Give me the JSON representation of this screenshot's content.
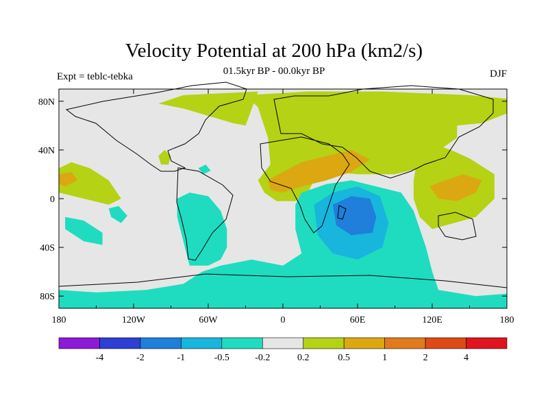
{
  "chart_data": {
    "type": "heatmap",
    "title": "Velocity Potential at 200 hPa (km2/s)",
    "subtitle": "01.5kyr BP - 00.0kyr BP",
    "left_label": "Expt = teblc-tebka",
    "right_label": "DJF",
    "xlim": [
      -180,
      180
    ],
    "ylim": [
      -90,
      90
    ],
    "x_ticks": [
      {
        "value": -180,
        "label": "180"
      },
      {
        "value": -120,
        "label": "120W"
      },
      {
        "value": -60,
        "label": "60W"
      },
      {
        "value": 0,
        "label": "0"
      },
      {
        "value": 60,
        "label": "60E"
      },
      {
        "value": 120,
        "label": "120E"
      },
      {
        "value": 180,
        "label": "180"
      }
    ],
    "y_ticks": [
      {
        "value": 80,
        "label": "80N"
      },
      {
        "value": 40,
        "label": "40N"
      },
      {
        "value": 0,
        "label": "0"
      },
      {
        "value": -40,
        "label": "40S"
      },
      {
        "value": -80,
        "label": "80S"
      }
    ],
    "colorbar": {
      "colors": [
        "#8c1ad6",
        "#2f3fd4",
        "#1f7fda",
        "#18b5dd",
        "#1fdcc0",
        "#e6e6e6",
        "#b5d214",
        "#dba812",
        "#e07a1c",
        "#de4a16",
        "#e0141e"
      ],
      "labels": [
        "-4",
        "-2",
        "-1",
        "-0.5",
        "-0.2",
        "0.2",
        "0.5",
        "1",
        "2",
        "4"
      ]
    },
    "regions": [
      {
        "name": "north-africa-eurasia-positive",
        "class": "0.2 to 0.5",
        "color": "#b5d214",
        "points": [
          [
            -20,
            15
          ],
          [
            -10,
            28
          ],
          [
            -12,
            50
          ],
          [
            -20,
            75
          ],
          [
            -30,
            85
          ],
          [
            20,
            88
          ],
          [
            80,
            88
          ],
          [
            150,
            85
          ],
          [
            180,
            82
          ],
          [
            180,
            70
          ],
          [
            160,
            62
          ],
          [
            140,
            60
          ],
          [
            140,
            50
          ],
          [
            130,
            43
          ],
          [
            120,
            35
          ],
          [
            110,
            25
          ],
          [
            90,
            20
          ],
          [
            60,
            20
          ],
          [
            40,
            22
          ],
          [
            25,
            15
          ],
          [
            20,
            5
          ],
          [
            10,
            -2
          ],
          [
            -5,
            -2
          ],
          [
            -15,
            5
          ]
        ]
      },
      {
        "name": "north-atlantic-positive",
        "class": "0.2 to 0.5",
        "color": "#b5d214",
        "points": [
          [
            -100,
            78
          ],
          [
            -80,
            85
          ],
          [
            -20,
            88
          ],
          [
            -30,
            60
          ],
          [
            -40,
            62
          ],
          [
            -60,
            68
          ],
          [
            -80,
            74
          ]
        ]
      },
      {
        "name": "west-pacific-positive",
        "class": "0.2 to 0.5",
        "color": "#b5d214",
        "points": [
          [
            108,
            32
          ],
          [
            120,
            45
          ],
          [
            135,
            40
          ],
          [
            150,
            33
          ],
          [
            170,
            20
          ],
          [
            170,
            0
          ],
          [
            155,
            -15
          ],
          [
            120,
            -25
          ],
          [
            110,
            -15
          ],
          [
            105,
            0
          ],
          [
            105,
            15
          ]
        ]
      },
      {
        "name": "gulf-positive",
        "class": "0.2 to 0.5",
        "color": "#b5d214",
        "points": [
          [
            -100,
            35
          ],
          [
            -95,
            40
          ],
          [
            -90,
            35
          ],
          [
            -92,
            28
          ],
          [
            -98,
            28
          ]
        ]
      },
      {
        "name": "north-pacific-positive",
        "class": "0.2 to 0.5",
        "color": "#b5d214",
        "points": [
          [
            -180,
            25
          ],
          [
            -170,
            30
          ],
          [
            -155,
            25
          ],
          [
            -140,
            15
          ],
          [
            -130,
            0
          ],
          [
            -140,
            -5
          ],
          [
            -160,
            0
          ],
          [
            -180,
            5
          ]
        ]
      },
      {
        "name": "north-africa-moderate",
        "class": "0.5 to 1",
        "color": "#dba812",
        "points": [
          [
            -12,
            15
          ],
          [
            0,
            22
          ],
          [
            15,
            30
          ],
          [
            35,
            35
          ],
          [
            55,
            40
          ],
          [
            70,
            32
          ],
          [
            55,
            22
          ],
          [
            35,
            15
          ],
          [
            15,
            10
          ],
          [
            0,
            5
          ],
          [
            -10,
            7
          ]
        ]
      },
      {
        "name": "indonesia-moderate",
        "class": "0.5 to 1",
        "color": "#dba812",
        "points": [
          [
            118,
            10
          ],
          [
            125,
            13
          ],
          [
            145,
            20
          ],
          [
            160,
            15
          ],
          [
            155,
            5
          ],
          [
            140,
            -2
          ],
          [
            125,
            0
          ]
        ]
      },
      {
        "name": "pacific-moderate",
        "class": "0.5 to 1",
        "color": "#dba812",
        "points": [
          [
            -180,
            20
          ],
          [
            -170,
            22
          ],
          [
            -165,
            15
          ],
          [
            -175,
            10
          ],
          [
            -180,
            12
          ]
        ]
      },
      {
        "name": "indian-ocean-negative",
        "class": "-0.5 to -0.2",
        "color": "#1fdcc0",
        "points": [
          [
            15,
            5
          ],
          [
            35,
            12
          ],
          [
            55,
            15
          ],
          [
            75,
            10
          ],
          [
            95,
            5
          ],
          [
            105,
            -10
          ],
          [
            115,
            -40
          ],
          [
            120,
            -60
          ],
          [
            125,
            -75
          ],
          [
            155,
            -80
          ],
          [
            180,
            -78
          ],
          [
            180,
            -90
          ],
          [
            -180,
            -90
          ],
          [
            -180,
            -75
          ],
          [
            -150,
            -77
          ],
          [
            -110,
            -75
          ],
          [
            -80,
            -70
          ],
          [
            -65,
            -60
          ],
          [
            -50,
            -55
          ],
          [
            -25,
            -50
          ],
          [
            0,
            -55
          ],
          [
            15,
            -45
          ],
          [
            10,
            -25
          ],
          [
            10,
            -5
          ]
        ]
      },
      {
        "name": "south-america-negative",
        "class": "-0.5 to -0.2",
        "color": "#1fdcc0",
        "points": [
          [
            -85,
            0
          ],
          [
            -75,
            5
          ],
          [
            -60,
            2
          ],
          [
            -50,
            -10
          ],
          [
            -45,
            -25
          ],
          [
            -45,
            -40
          ],
          [
            -50,
            -50
          ],
          [
            -60,
            -55
          ],
          [
            -75,
            -55
          ],
          [
            -80,
            -35
          ],
          [
            -85,
            -15
          ]
        ]
      },
      {
        "name": "south-pacific-negative",
        "class": "-0.5 to -0.2",
        "color": "#1fdcc0",
        "points": [
          [
            -175,
            -15
          ],
          [
            -160,
            -18
          ],
          [
            -145,
            -28
          ],
          [
            -145,
            -38
          ],
          [
            -160,
            -35
          ],
          [
            -175,
            -25
          ]
        ]
      },
      {
        "name": "caribbean-negative",
        "class": "-0.5 to -0.2",
        "color": "#1fdcc0",
        "points": [
          [
            -68,
            25
          ],
          [
            -62,
            28
          ],
          [
            -58,
            23
          ],
          [
            -64,
            20
          ]
        ]
      },
      {
        "name": "mid-pacific-negative",
        "class": "-0.5 to -0.2",
        "color": "#1fdcc0",
        "points": [
          [
            -140,
            -8
          ],
          [
            -132,
            -6
          ],
          [
            -125,
            -14
          ],
          [
            -130,
            -20
          ],
          [
            -138,
            -15
          ]
        ]
      },
      {
        "name": "indian-ocean-strong",
        "class": "-1 to -0.5",
        "color": "#18b5dd",
        "points": [
          [
            25,
            -5
          ],
          [
            40,
            5
          ],
          [
            60,
            10
          ],
          [
            78,
            2
          ],
          [
            85,
            -20
          ],
          [
            80,
            -40
          ],
          [
            60,
            -50
          ],
          [
            40,
            -45
          ],
          [
            28,
            -30
          ]
        ]
      },
      {
        "name": "indian-ocean-core",
        "class": "-2 to -1",
        "color": "#1f7fda",
        "points": [
          [
            40,
            -5
          ],
          [
            55,
            2
          ],
          [
            70,
            0
          ],
          [
            75,
            -15
          ],
          [
            72,
            -28
          ],
          [
            55,
            -30
          ],
          [
            43,
            -22
          ]
        ]
      }
    ]
  }
}
